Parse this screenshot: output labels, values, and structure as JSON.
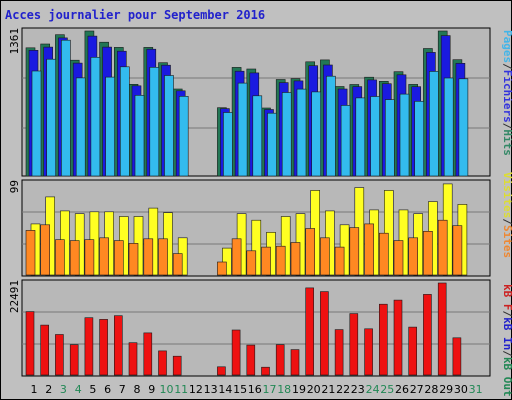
{
  "chart_data": {
    "type": "bar",
    "title": "Acces journalier pour September 2016",
    "categories": [
      "1",
      "2",
      "3",
      "4",
      "5",
      "6",
      "7",
      "8",
      "9",
      "10",
      "11",
      "12",
      "13",
      "14",
      "15",
      "16",
      "17",
      "18",
      "19",
      "20",
      "21",
      "22",
      "23",
      "24",
      "25",
      "26",
      "27",
      "28",
      "29",
      "30",
      "31"
    ],
    "weekend_days": [
      "3",
      "4",
      "10",
      "11",
      "17",
      "18",
      "24",
      "25",
      "31"
    ],
    "panels": [
      {
        "name": "traffic",
        "ymax_label": "1361",
        "ymax": 1361,
        "legend": [
          {
            "label": "Pages",
            "color": "#44b5e8"
          },
          {
            "label": "/",
            "color": "#333333"
          },
          {
            "label": "Fichiers",
            "color": "#3333dd"
          },
          {
            "label": "/",
            "color": "#333333"
          },
          {
            "label": "Hits",
            "color": "#338866"
          }
        ],
        "series": [
          {
            "key": "hits",
            "color": "#227755",
            "values": [
              1203,
              1239,
              1326,
              1087,
              1361,
              1256,
              1207,
              861,
              1207,
              1063,
              817,
              null,
              null,
              641,
              1019,
              1004,
              638,
              906,
              913,
              1072,
              1090,
              840,
              859,
              927,
              889,
              979,
              860,
              1197,
              1361,
              1092,
              null
            ]
          },
          {
            "key": "fichiers",
            "color": "#1a1ae0",
            "values": [
              1180,
              1210,
              1296,
              1060,
              1313,
              1210,
              1171,
              847,
              1190,
              1040,
              800,
              null,
              null,
              633,
              984,
              968,
              624,
              877,
              893,
              1035,
              1042,
              817,
              839,
              902,
              866,
              950,
              838,
              1160,
              1318,
              1058,
              null
            ]
          },
          {
            "key": "pages",
            "color": "#33bbee",
            "values": [
              986,
              1096,
              1275,
              921,
              1114,
              928,
              1025,
              757,
              1020,
              943,
              748,
              null,
              null,
              596,
              872,
              753,
              589,
              784,
              816,
              789,
              937,
              663,
              733,
              746,
              717,
              769,
              701,
              982,
              920,
              912,
              null
            ]
          }
        ]
      },
      {
        "name": "visits",
        "ymax_label": "99",
        "ymax": 99,
        "legend": [
          {
            "label": "Visites",
            "color": "#dddd33"
          },
          {
            "label": "/",
            "color": "#333333"
          },
          {
            "label": "Sites",
            "color": "#ee8833"
          }
        ],
        "series": [
          {
            "key": "visites",
            "color": "#ffff22",
            "values": [
              55,
              84,
              69,
              66,
              68,
              68,
              63,
              63,
              72,
              67,
              40,
              null,
              null,
              29,
              66,
              59,
              46,
              63,
              66,
              91,
              69,
              54,
              94,
              70,
              91,
              70,
              66,
              79,
              98,
              76,
              null
            ]
          },
          {
            "key": "sites",
            "color": "#ff8822",
            "values": [
              48,
              54,
              38,
              37,
              38,
              40,
              37,
              34,
              39,
              39,
              23,
              null,
              null,
              14,
              39,
              26,
              30,
              31,
              35,
              50,
              40,
              30,
              51,
              55,
              45,
              37,
              40,
              47,
              59,
              53,
              null
            ]
          }
        ]
      },
      {
        "name": "bandwidth",
        "ymax_label": "22491",
        "ymax": 22491,
        "legend": [
          {
            "label": "kB F",
            "color": "#cc2222"
          },
          {
            "label": "/",
            "color": "#333333"
          },
          {
            "label": "kB In",
            "color": "#2222cc"
          },
          {
            "label": "/",
            "color": "#333333"
          },
          {
            "label": "kB Out",
            "color": "#228855"
          }
        ],
        "series": [
          {
            "key": "kb_f",
            "color": "#ee1111",
            "values": [
              15500,
              12200,
              9900,
              7400,
              14000,
              13600,
              14500,
              7900,
              10300,
              5900,
              4600,
              null,
              null,
              2000,
              11000,
              7300,
              1900,
              7400,
              6200,
              21300,
              20400,
              11100,
              15000,
              11300,
              17300,
              18300,
              11700,
              19700,
              22491,
              9100,
              null
            ]
          }
        ]
      }
    ]
  }
}
